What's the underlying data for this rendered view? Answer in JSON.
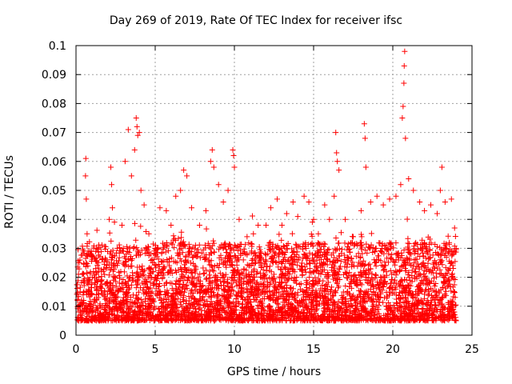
{
  "chart_data": {
    "type": "scatter",
    "title": "Day 269 of 2019, Rate Of TEC Index for receiver ifsc",
    "xlabel": "GPS time / hours",
    "ylabel": "ROTI / TECUs",
    "xlim": [
      0,
      25
    ],
    "ylim": [
      0,
      0.1
    ],
    "xticks": [
      0,
      5,
      10,
      15,
      20,
      25
    ],
    "xtick_labels": [
      "0",
      "5",
      "10",
      "15",
      "20",
      "25"
    ],
    "yticks": [
      0,
      0.01,
      0.02,
      0.03,
      0.04,
      0.05,
      0.06,
      0.07,
      0.08,
      0.09,
      0.1
    ],
    "ytick_labels": [
      "0",
      "0.01",
      "0.02",
      "0.03",
      "0.04",
      "0.05",
      "0.06",
      "0.07",
      "0.08",
      "0.09",
      "0.1"
    ],
    "grid": true,
    "marker": "+",
    "series": [
      {
        "color": "#ff0000",
        "points": [
          [
            0.1,
            0.012
          ],
          [
            0.2,
            0.025
          ],
          [
            0.3,
            0.008
          ],
          [
            0.4,
            0.021
          ],
          [
            0.5,
            0.015
          ],
          [
            0.6,
            0.055
          ],
          [
            0.62,
            0.061
          ],
          [
            0.65,
            0.047
          ],
          [
            0.7,
            0.035
          ],
          [
            0.75,
            0.028
          ],
          [
            1.0,
            0.018
          ],
          [
            1.3,
            0.03
          ],
          [
            1.6,
            0.022
          ],
          [
            1.9,
            0.026
          ],
          [
            2.1,
            0.04
          ],
          [
            2.2,
            0.058
          ],
          [
            2.25,
            0.052
          ],
          [
            2.3,
            0.044
          ],
          [
            2.6,
            0.03
          ],
          [
            2.9,
            0.038
          ],
          [
            3.1,
            0.06
          ],
          [
            3.3,
            0.071
          ],
          [
            3.5,
            0.055
          ],
          [
            3.7,
            0.064
          ],
          [
            3.8,
            0.075
          ],
          [
            3.85,
            0.072
          ],
          [
            3.9,
            0.069
          ],
          [
            4.0,
            0.07
          ],
          [
            4.1,
            0.05
          ],
          [
            4.3,
            0.045
          ],
          [
            4.6,
            0.035
          ],
          [
            5.0,
            0.03
          ],
          [
            5.3,
            0.044
          ],
          [
            5.7,
            0.043
          ],
          [
            6.0,
            0.038
          ],
          [
            6.3,
            0.048
          ],
          [
            6.6,
            0.05
          ],
          [
            6.8,
            0.057
          ],
          [
            7.0,
            0.055
          ],
          [
            7.3,
            0.044
          ],
          [
            7.8,
            0.038
          ],
          [
            8.2,
            0.043
          ],
          [
            8.5,
            0.06
          ],
          [
            8.6,
            0.064
          ],
          [
            8.7,
            0.058
          ],
          [
            9.0,
            0.052
          ],
          [
            9.3,
            0.046
          ],
          [
            9.6,
            0.05
          ],
          [
            9.9,
            0.064
          ],
          [
            9.95,
            0.062
          ],
          [
            10.0,
            0.058
          ],
          [
            10.3,
            0.04
          ],
          [
            10.8,
            0.034
          ],
          [
            11.2,
            0.035
          ],
          [
            11.5,
            0.038
          ],
          [
            12.0,
            0.038
          ],
          [
            12.3,
            0.044
          ],
          [
            12.7,
            0.047
          ],
          [
            13.0,
            0.038
          ],
          [
            13.3,
            0.042
          ],
          [
            13.7,
            0.046
          ],
          [
            14.0,
            0.041
          ],
          [
            14.4,
            0.048
          ],
          [
            14.7,
            0.046
          ],
          [
            15.0,
            0.04
          ],
          [
            15.3,
            0.035
          ],
          [
            15.7,
            0.045
          ],
          [
            16.0,
            0.04
          ],
          [
            16.3,
            0.048
          ],
          [
            16.4,
            0.07
          ],
          [
            16.45,
            0.063
          ],
          [
            16.5,
            0.06
          ],
          [
            16.6,
            0.057
          ],
          [
            17.0,
            0.04
          ],
          [
            17.5,
            0.034
          ],
          [
            18.0,
            0.043
          ],
          [
            18.2,
            0.073
          ],
          [
            18.25,
            0.068
          ],
          [
            18.3,
            0.058
          ],
          [
            18.6,
            0.046
          ],
          [
            19.0,
            0.048
          ],
          [
            19.4,
            0.045
          ],
          [
            19.8,
            0.047
          ],
          [
            20.2,
            0.048
          ],
          [
            20.5,
            0.052
          ],
          [
            20.6,
            0.075
          ],
          [
            20.65,
            0.079
          ],
          [
            20.7,
            0.087
          ],
          [
            20.72,
            0.093
          ],
          [
            20.75,
            0.098
          ],
          [
            20.8,
            0.068
          ],
          [
            21.0,
            0.054
          ],
          [
            21.3,
            0.05
          ],
          [
            21.7,
            0.046
          ],
          [
            22.0,
            0.043
          ],
          [
            22.4,
            0.045
          ],
          [
            22.8,
            0.042
          ],
          [
            23.0,
            0.05
          ],
          [
            23.1,
            0.058
          ],
          [
            23.3,
            0.046
          ],
          [
            23.7,
            0.047
          ],
          [
            23.9,
            0.037
          ]
        ],
        "baseline_band": [
          0.005,
          0.032
        ]
      }
    ]
  }
}
